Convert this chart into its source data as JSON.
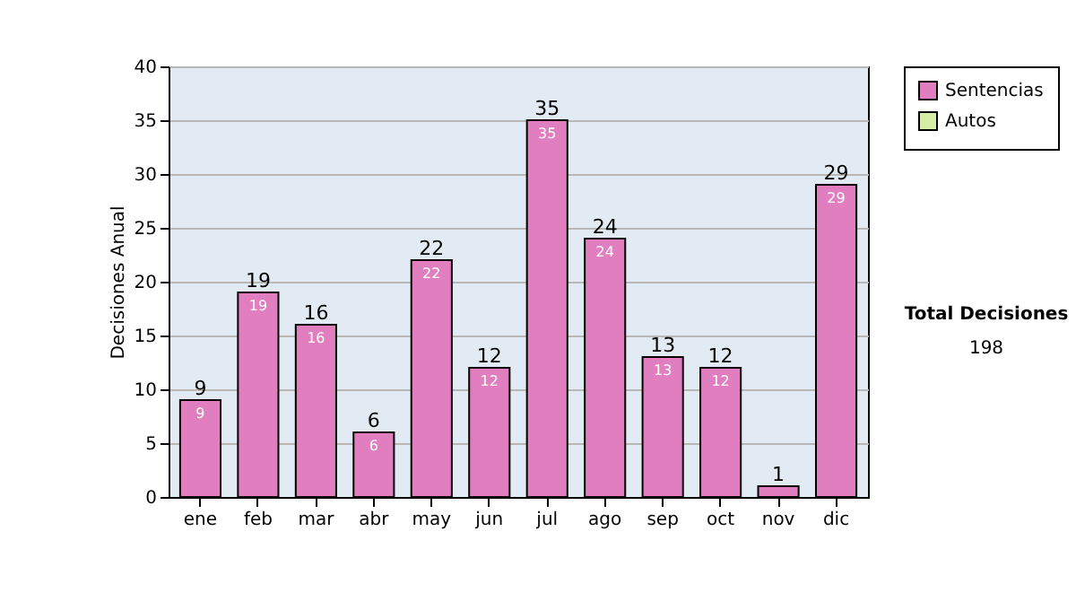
{
  "chart_data": {
    "type": "bar",
    "ylabel": "Decisiones Anual",
    "categories": [
      "ene",
      "feb",
      "mar",
      "abr",
      "may",
      "jun",
      "jul",
      "ago",
      "sep",
      "oct",
      "nov",
      "dic"
    ],
    "series": [
      {
        "name": "Sentencias",
        "color": "#e07ec0",
        "values": [
          9,
          19,
          16,
          6,
          22,
          12,
          35,
          24,
          13,
          12,
          1,
          29
        ],
        "value_labels": [
          "9",
          "19",
          "16",
          "6",
          "22",
          "12",
          "35",
          "24",
          "13",
          "12",
          null,
          "29"
        ]
      },
      {
        "name": "Autos",
        "color": "#d4eca4",
        "values": [
          null,
          null,
          null,
          null,
          null,
          null,
          null,
          null,
          null,
          null,
          null,
          null
        ]
      }
    ],
    "totals": [
      "9",
      "19",
      "16",
      "6",
      "22",
      "12",
      "35",
      "24",
      "13",
      "12",
      "1",
      "29"
    ],
    "ylim": [
      0,
      40
    ],
    "yticks": [
      0,
      5,
      10,
      15,
      20,
      25,
      30,
      35,
      40
    ],
    "grid": "y",
    "legend": "right",
    "annotations": [
      "Total Decisiones",
      "198"
    ]
  }
}
